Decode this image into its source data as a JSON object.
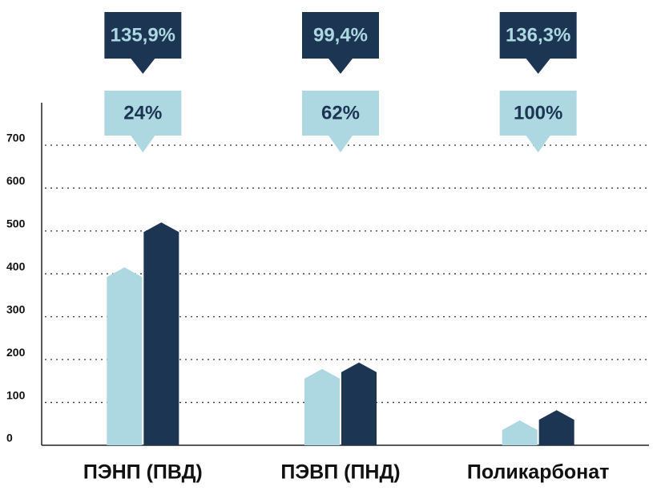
{
  "chart_data": {
    "type": "bar",
    "categories": [
      "ПЭНП (ПВД)",
      "ПЭВП (ПНД)",
      "Поликарбонат"
    ],
    "series": [
      {
        "color": "#add8e2",
        "values": [
          415,
          178,
          58
        ]
      },
      {
        "color": "#1b3553",
        "values": [
          520,
          193,
          82
        ]
      }
    ],
    "callouts_top": [
      "135,9%",
      "99,4%",
      "136,3%"
    ],
    "callouts_bottom": [
      "24%",
      "62%",
      "100%"
    ],
    "ylim": [
      0,
      800
    ],
    "yticks": [
      0,
      100,
      200,
      300,
      400,
      500,
      600,
      700
    ],
    "grid": true
  }
}
